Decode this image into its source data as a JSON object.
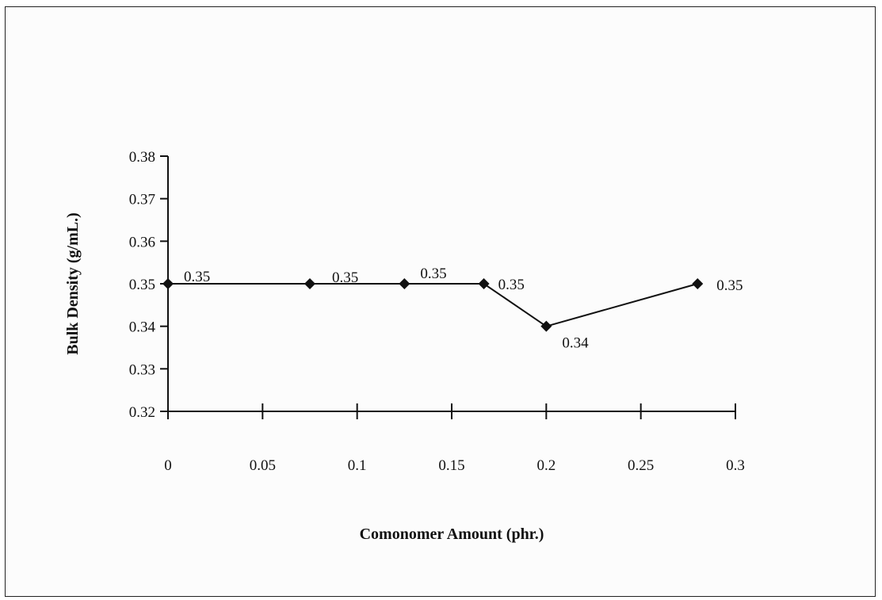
{
  "chart_data": {
    "type": "line",
    "title": "",
    "xlabel": "Comonomer Amount (phr.)",
    "ylabel": "Bulk Density (g/mL.)",
    "xlim": [
      0,
      0.3
    ],
    "ylim": [
      0.32,
      0.38
    ],
    "x_ticks": [
      "0",
      "0.05",
      "0.1",
      "0.15",
      "0.2",
      "0.25",
      "0.3"
    ],
    "y_ticks": [
      "0.32",
      "0.33",
      "0.34",
      "0.35",
      "0.36",
      "0.37",
      "0.38"
    ],
    "series": [
      {
        "points": [
          {
            "x": 0,
            "y": 0.35,
            "label": "0.35"
          },
          {
            "x": 0.075,
            "y": 0.35,
            "label": "0.35"
          },
          {
            "x": 0.125,
            "y": 0.35,
            "label": "0.35"
          },
          {
            "x": 0.167,
            "y": 0.35,
            "label": "0.35"
          },
          {
            "x": 0.2,
            "y": 0.34,
            "label": "0.34"
          },
          {
            "x": 0.28,
            "y": 0.35,
            "label": "0.35"
          }
        ]
      }
    ],
    "grid": false,
    "legend": "none",
    "line_color": "#111111",
    "marker": "diamond"
  }
}
